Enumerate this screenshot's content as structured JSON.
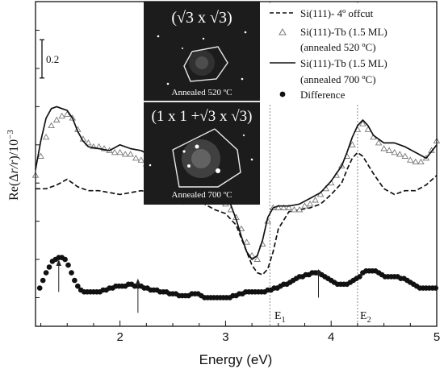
{
  "chart_data": {
    "type": "line",
    "xlabel": "Energy (eV)",
    "ylabel_parts": {
      "re": "Re(",
      "delta": "Δ",
      "r_over_r": "r/r",
      "close": ")",
      "x": "/10",
      "exp": "−3"
    },
    "xlim": [
      1.2,
      5.0
    ],
    "ylim": [
      -0.15,
      1.55
    ],
    "x_ticks": [
      2,
      3,
      4,
      5
    ],
    "y_minor_ticks": [
      0.0,
      0.2,
      0.4,
      0.6,
      0.8,
      1.0,
      1.2,
      1.4
    ],
    "scale_bar": {
      "label": "0.2",
      "value": 0.2,
      "y_start": 1.15
    },
    "vlines": [
      {
        "x": 3.42,
        "label": "E",
        "sub": "1"
      },
      {
        "x": 4.25,
        "label": "E",
        "sub": "2"
      }
    ],
    "arrows": [
      {
        "x": 1.42,
        "y_from": 0.03,
        "y_to": 0.2
      },
      {
        "x": 2.17,
        "y_from": -0.08,
        "y_to": 0.1
      },
      {
        "x": 3.88,
        "y_from": 0.0,
        "y_to": 0.15
      }
    ],
    "legend": [
      {
        "style": "dashed",
        "label": "Si(111)- 4º offcut"
      },
      {
        "style": "triangle",
        "label": "Si(111)-Tb (1.5 ML)",
        "label2": "(annealed 520 ºC)"
      },
      {
        "style": "solid",
        "label": "Si(111)-Tb (1.5 ML)",
        "label2": "(annealed 700 ºC)"
      },
      {
        "style": "dot",
        "label": "Difference"
      }
    ],
    "series": [
      {
        "name": "Si(111)- 4º offcut",
        "style": "dashed",
        "x": [
          1.2,
          1.3,
          1.4,
          1.5,
          1.6,
          1.7,
          1.8,
          1.9,
          2.0,
          2.1,
          2.2,
          2.3,
          2.4,
          2.5,
          2.6,
          2.7,
          2.8,
          2.9,
          3.0,
          3.1,
          3.2,
          3.25,
          3.3,
          3.35,
          3.4,
          3.45,
          3.5,
          3.6,
          3.7,
          3.8,
          3.9,
          4.0,
          4.1,
          4.15,
          4.2,
          4.25,
          4.3,
          4.4,
          4.5,
          4.6,
          4.7,
          4.8,
          4.9,
          5.0
        ],
        "y": [
          0.57,
          0.57,
          0.59,
          0.62,
          0.58,
          0.56,
          0.56,
          0.55,
          0.54,
          0.55,
          0.56,
          0.55,
          0.53,
          0.5,
          0.49,
          0.5,
          0.49,
          0.46,
          0.44,
          0.38,
          0.24,
          0.17,
          0.13,
          0.12,
          0.15,
          0.24,
          0.36,
          0.45,
          0.46,
          0.47,
          0.49,
          0.54,
          0.6,
          0.67,
          0.73,
          0.76,
          0.74,
          0.65,
          0.57,
          0.54,
          0.56,
          0.56,
          0.59,
          0.64
        ]
      },
      {
        "name": "Si(111)-Tb (1.5 ML) (annealed 520 ºC)",
        "style": "triangle",
        "x": [
          1.2,
          1.25,
          1.3,
          1.35,
          1.4,
          1.45,
          1.5,
          1.55,
          1.6,
          1.65,
          1.7,
          1.75,
          1.8,
          1.85,
          1.9,
          1.95,
          2.0,
          2.05,
          2.1,
          2.15,
          2.2,
          2.25,
          2.3,
          2.35,
          2.4,
          2.45,
          2.5,
          2.55,
          2.6,
          2.65,
          2.7,
          2.75,
          2.8,
          2.85,
          2.9,
          2.95,
          3.0,
          3.05,
          3.1,
          3.15,
          3.2,
          3.25,
          3.3,
          3.35,
          3.4,
          3.45,
          3.5,
          3.55,
          3.6,
          3.65,
          3.7,
          3.75,
          3.8,
          3.85,
          3.9,
          3.95,
          4.0,
          4.05,
          4.1,
          4.15,
          4.2,
          4.25,
          4.3,
          4.35,
          4.4,
          4.45,
          4.5,
          4.55,
          4.6,
          4.65,
          4.7,
          4.75,
          4.8,
          4.85,
          4.9,
          4.95,
          5.0
        ],
        "y": [
          0.64,
          0.74,
          0.84,
          0.9,
          0.93,
          0.95,
          0.96,
          0.94,
          0.88,
          0.83,
          0.81,
          0.79,
          0.79,
          0.78,
          0.77,
          0.76,
          0.76,
          0.75,
          0.75,
          0.73,
          0.72,
          0.7,
          0.68,
          0.67,
          0.66,
          0.64,
          0.63,
          0.62,
          0.61,
          0.6,
          0.6,
          0.59,
          0.58,
          0.56,
          0.55,
          0.52,
          0.49,
          0.46,
          0.42,
          0.36,
          0.29,
          0.22,
          0.2,
          0.28,
          0.4,
          0.47,
          0.47,
          0.47,
          0.47,
          0.46,
          0.46,
          0.48,
          0.49,
          0.51,
          0.54,
          0.57,
          0.6,
          0.64,
          0.69,
          0.74,
          0.8,
          0.88,
          0.91,
          0.88,
          0.84,
          0.81,
          0.78,
          0.77,
          0.76,
          0.75,
          0.74,
          0.72,
          0.71,
          0.71,
          0.73,
          0.77,
          0.82
        ]
      },
      {
        "name": "Si(111)-Tb (1.5 ML) (annealed 700 ºC)",
        "style": "solid",
        "x": [
          1.2,
          1.25,
          1.3,
          1.35,
          1.4,
          1.45,
          1.5,
          1.55,
          1.6,
          1.65,
          1.7,
          1.8,
          1.9,
          2.0,
          2.1,
          2.2,
          2.3,
          2.4,
          2.5,
          2.6,
          2.7,
          2.8,
          2.9,
          3.0,
          3.1,
          3.15,
          3.2,
          3.25,
          3.3,
          3.35,
          3.4,
          3.45,
          3.5,
          3.6,
          3.7,
          3.8,
          3.9,
          4.0,
          4.1,
          4.15,
          4.2,
          4.25,
          4.3,
          4.35,
          4.4,
          4.5,
          4.6,
          4.7,
          4.8,
          4.9,
          5.0
        ],
        "y": [
          0.67,
          0.82,
          0.94,
          0.99,
          1.0,
          0.99,
          0.98,
          0.94,
          0.87,
          0.82,
          0.79,
          0.78,
          0.77,
          0.8,
          0.78,
          0.77,
          0.74,
          0.72,
          0.68,
          0.66,
          0.63,
          0.62,
          0.63,
          0.56,
          0.41,
          0.32,
          0.24,
          0.2,
          0.22,
          0.3,
          0.42,
          0.47,
          0.48,
          0.48,
          0.49,
          0.52,
          0.55,
          0.61,
          0.69,
          0.76,
          0.84,
          0.9,
          0.93,
          0.9,
          0.85,
          0.81,
          0.81,
          0.79,
          0.76,
          0.73,
          0.8
        ]
      },
      {
        "name": "Difference",
        "style": "dot",
        "x": [
          1.24,
          1.27,
          1.3,
          1.33,
          1.36,
          1.39,
          1.42,
          1.45,
          1.48,
          1.51,
          1.54,
          1.57,
          1.6,
          1.63,
          1.66,
          1.69,
          1.72,
          1.75,
          1.78,
          1.81,
          1.84,
          1.87,
          1.9,
          1.93,
          1.96,
          1.99,
          2.02,
          2.05,
          2.08,
          2.11,
          2.14,
          2.17,
          2.2,
          2.23,
          2.26,
          2.29,
          2.32,
          2.35,
          2.38,
          2.41,
          2.44,
          2.47,
          2.5,
          2.53,
          2.56,
          2.59,
          2.62,
          2.65,
          2.68,
          2.71,
          2.74,
          2.77,
          2.8,
          2.83,
          2.86,
          2.89,
          2.92,
          2.95,
          2.98,
          3.01,
          3.04,
          3.07,
          3.1,
          3.13,
          3.16,
          3.19,
          3.22,
          3.25,
          3.28,
          3.31,
          3.34,
          3.37,
          3.4,
          3.43,
          3.46,
          3.49,
          3.52,
          3.55,
          3.58,
          3.61,
          3.64,
          3.67,
          3.7,
          3.73,
          3.76,
          3.79,
          3.82,
          3.85,
          3.88,
          3.91,
          3.94,
          3.97,
          4.0,
          4.03,
          4.06,
          4.09,
          4.12,
          4.15,
          4.18,
          4.21,
          4.24,
          4.27,
          4.3,
          4.33,
          4.36,
          4.39,
          4.42,
          4.45,
          4.48,
          4.51,
          4.54,
          4.57,
          4.6,
          4.63,
          4.66,
          4.69,
          4.72,
          4.75,
          4.78,
          4.81,
          4.84,
          4.87,
          4.9,
          4.93,
          4.96,
          4.99
        ],
        "y": [
          0.05,
          0.09,
          0.13,
          0.16,
          0.19,
          0.2,
          0.21,
          0.21,
          0.2,
          0.17,
          0.13,
          0.09,
          0.06,
          0.04,
          0.03,
          0.03,
          0.03,
          0.03,
          0.03,
          0.03,
          0.04,
          0.04,
          0.05,
          0.05,
          0.06,
          0.06,
          0.06,
          0.06,
          0.07,
          0.07,
          0.06,
          0.06,
          0.06,
          0.05,
          0.05,
          0.04,
          0.04,
          0.04,
          0.03,
          0.03,
          0.03,
          0.02,
          0.02,
          0.02,
          0.01,
          0.01,
          0.01,
          0.01,
          0.02,
          0.02,
          0.02,
          0.01,
          0.0,
          0.0,
          0.0,
          0.0,
          0.0,
          0.0,
          0.0,
          0.0,
          0.0,
          0.01,
          0.01,
          0.02,
          0.02,
          0.03,
          0.03,
          0.03,
          0.03,
          0.03,
          0.03,
          0.03,
          0.04,
          0.04,
          0.05,
          0.05,
          0.06,
          0.07,
          0.07,
          0.08,
          0.09,
          0.1,
          0.11,
          0.11,
          0.12,
          0.12,
          0.13,
          0.13,
          0.13,
          0.12,
          0.11,
          0.1,
          0.09,
          0.08,
          0.07,
          0.07,
          0.07,
          0.07,
          0.08,
          0.09,
          0.1,
          0.11,
          0.13,
          0.14,
          0.14,
          0.14,
          0.14,
          0.13,
          0.12,
          0.11,
          0.11,
          0.11,
          0.11,
          0.11,
          0.1,
          0.1,
          0.09,
          0.08,
          0.07,
          0.06,
          0.05,
          0.05,
          0.05,
          0.05,
          0.05,
          0.05
        ]
      }
    ]
  },
  "insets": [
    {
      "title": "(√3 x √3)",
      "caption": "Annealed 520 ºC"
    },
    {
      "title": "(1 x 1 +√3 x √3)",
      "caption": "Annealed 700 ºC"
    }
  ],
  "colors": {
    "ink": "#111111",
    "inset_bg": "#1c1c1c",
    "inset_text": "#ffffff",
    "guide": "#888888"
  }
}
